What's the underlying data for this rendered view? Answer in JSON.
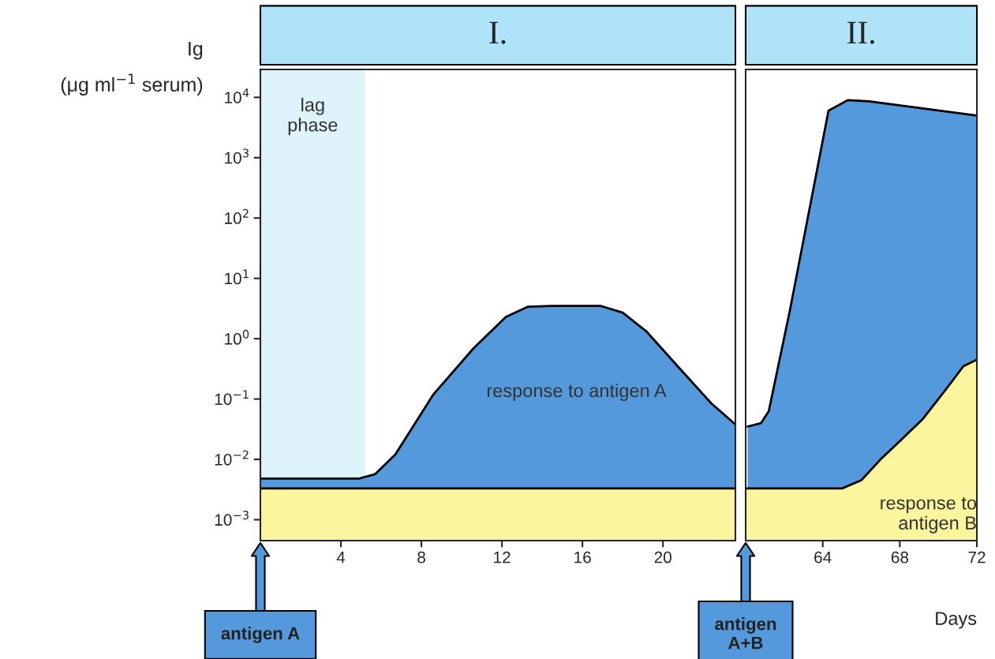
{
  "chart_data": [
    {
      "type": "area",
      "title": "I.",
      "ylabel": "Ig\n(μg ml$^{−1}$ serum)",
      "log": true,
      "x": [
        0,
        4.9,
        5.7,
        6.7,
        8.6,
        10.6,
        12.2,
        13.3,
        14.5,
        16.9,
        18.0,
        19.2,
        20.8,
        22.4,
        23.6
      ],
      "series": [
        {
          "name": "response to antigen A",
          "color": "#5599dd",
          "values": [
            0.0048,
            0.0048,
            0.0057,
            0.012,
            0.12,
            0.7,
            2.3,
            3.4,
            3.5,
            3.5,
            2.7,
            1.3,
            0.33,
            0.085,
            0.038
          ]
        },
        {
          "color": "#fbf59e",
          "x": [
            0,
            23.6
          ],
          "values": [
            0.0033,
            0.0033
          ]
        }
      ],
      "xlim": [
        0,
        23.6
      ],
      "xticks": [
        4,
        8,
        12,
        16,
        20
      ],
      "ylim": [
        0.00045,
        29000
      ],
      "yticks": [
        {
          "value": 0.001,
          "label": "10$^{−3}$"
        },
        {
          "value": 0.01,
          "label": "10$^{−2}$"
        },
        {
          "value": 0.1,
          "label": "10$^{−1}$"
        },
        {
          "value": 1,
          "label": "10$^{0}$"
        },
        {
          "value": 10,
          "label": "10$^{1}$"
        },
        {
          "value": 100,
          "label": "10$^{2}$"
        },
        {
          "value": 1000,
          "label": "10$^{3}$"
        },
        {
          "value": 10000,
          "label": "10$^{4}$"
        }
      ],
      "bands": [
        {
          "axis": "x",
          "from": 0,
          "to": 5.2,
          "label": "lag\nphase",
          "color": "#dff3fb"
        }
      ],
      "annotations": [
        "antigen A"
      ],
      "grid": false,
      "legend": false
    },
    {
      "type": "area",
      "title": "II.",
      "xlabel": "Days",
      "log": true,
      "x": [
        60.1,
        60.8,
        61.2,
        62.3,
        64.3,
        65.3,
        66.4,
        72
      ],
      "series": [
        {
          "color": "#5599dd",
          "values": [
            0.035,
            0.04,
            0.063,
            3,
            6000,
            9000,
            8600,
            5000
          ]
        },
        {
          "name": "response to\nantigen B",
          "color": "#fbf59e",
          "x": [
            60,
            65,
            66,
            67,
            68,
            69.2,
            70.5,
            71.3,
            72
          ],
          "values": [
            0.0033,
            0.0033,
            0.0045,
            0.01,
            0.02,
            0.047,
            0.16,
            0.35,
            0.45
          ]
        }
      ],
      "xlim": [
        60,
        72
      ],
      "xticks": [
        64,
        68,
        72
      ],
      "ylim": [
        0.00045,
        29000
      ],
      "tick_labels": "x",
      "annotations": [
        "antigen\nA+B"
      ],
      "grid": false,
      "legend": false
    }
  ]
}
